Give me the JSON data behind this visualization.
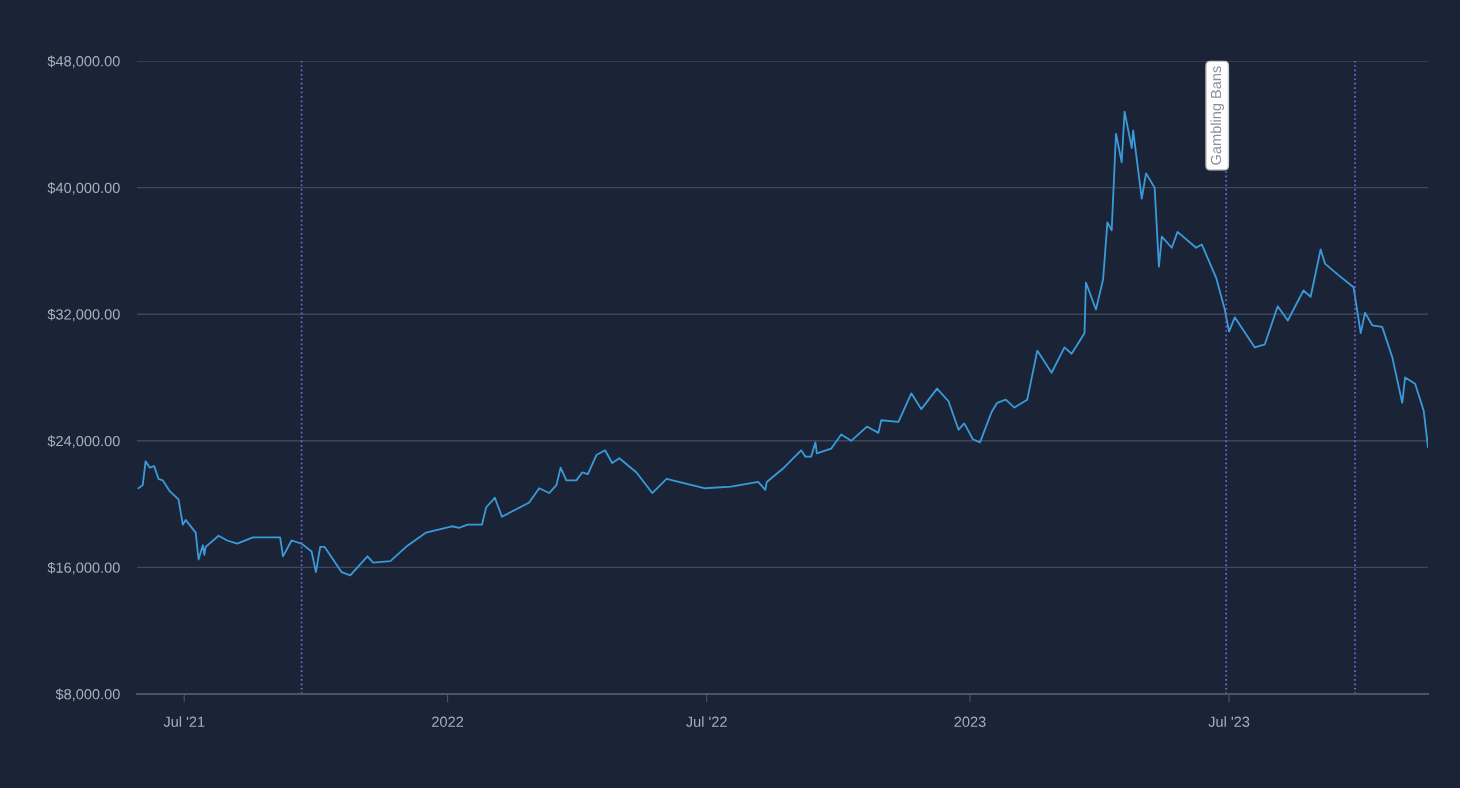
{
  "chart_data": {
    "type": "line",
    "x": [
      "2021-05-30",
      "2021-06-02",
      "2021-06-04",
      "2021-06-07",
      "2021-06-10",
      "2021-06-13",
      "2021-06-16",
      "2021-06-21",
      "2021-06-27",
      "2021-06-30",
      "2021-07-02",
      "2021-07-09",
      "2021-07-11",
      "2021-07-14",
      "2021-07-15",
      "2021-07-16",
      "2021-07-25",
      "2021-07-31",
      "2021-08-07",
      "2021-08-18",
      "2021-09-06",
      "2021-09-08",
      "2021-09-14",
      "2021-09-21",
      "2021-09-28",
      "2021-10-01",
      "2021-10-04",
      "2021-10-07",
      "2021-10-19",
      "2021-10-25",
      "2021-11-06",
      "2021-11-10",
      "2021-11-22",
      "2021-12-03",
      "2021-12-17",
      "2022-01-04",
      "2022-01-09",
      "2022-01-15",
      "2022-01-25",
      "2022-01-28",
      "2022-02-03",
      "2022-02-08",
      "2022-02-27",
      "2022-03-06",
      "2022-03-13",
      "2022-03-18",
      "2022-03-21",
      "2022-03-25",
      "2022-04-01",
      "2022-04-05",
      "2022-04-09",
      "2022-04-15",
      "2022-04-21",
      "2022-04-26",
      "2022-05-01",
      "2022-05-13",
      "2022-05-24",
      "2022-06-03",
      "2022-06-30",
      "2022-07-18",
      "2022-08-06",
      "2022-08-11",
      "2022-08-12",
      "2022-08-24",
      "2022-09-05",
      "2022-09-08",
      "2022-09-12",
      "2022-09-15",
      "2022-09-16",
      "2022-09-26",
      "2022-10-03",
      "2022-10-10",
      "2022-10-21",
      "2022-10-29",
      "2022-10-31",
      "2022-11-12",
      "2022-11-21",
      "2022-11-28",
      "2022-12-09",
      "2022-12-17",
      "2022-12-24",
      "2022-12-28",
      "2023-01-03",
      "2023-01-08",
      "2023-01-16",
      "2023-01-20",
      "2023-01-26",
      "2023-02-01",
      "2023-02-10",
      "2023-02-17",
      "2023-02-27",
      "2023-03-08",
      "2023-03-13",
      "2023-03-22",
      "2023-03-23",
      "2023-03-30",
      "2023-04-04",
      "2023-04-07",
      "2023-04-10",
      "2023-04-13",
      "2023-04-17",
      "2023-04-19",
      "2023-04-24",
      "2023-04-25",
      "2023-05-01",
      "2023-05-04",
      "2023-05-10",
      "2023-05-13",
      "2023-05-15",
      "2023-05-22",
      "2023-05-26",
      "2023-06-08",
      "2023-06-12",
      "2023-06-22",
      "2023-06-28",
      "2023-07-01",
      "2023-07-05",
      "2023-07-19",
      "2023-07-26",
      "2023-08-04",
      "2023-08-11",
      "2023-08-22",
      "2023-08-27",
      "2023-09-03",
      "2023-09-06",
      "2023-09-15",
      "2023-09-26",
      "2023-10-01",
      "2023-10-04",
      "2023-10-09",
      "2023-10-16",
      "2023-10-23",
      "2023-10-30",
      "2023-11-01",
      "2023-11-08",
      "2023-11-14",
      "2023-11-17"
    ],
    "series": [
      {
        "color": "#3a9ad9",
        "values": [
          21000,
          21200,
          22700,
          22300,
          22400,
          21600,
          21500,
          20800,
          20300,
          18700,
          19000,
          18200,
          16500,
          17400,
          16800,
          17300,
          18000,
          17700,
          17500,
          17900,
          17900,
          16700,
          17700,
          17500,
          17000,
          15700,
          17300,
          17300,
          15700,
          15500,
          16700,
          16300,
          16400,
          17300,
          18200,
          18600,
          18500,
          18700,
          18700,
          19800,
          20400,
          19200,
          20100,
          21000,
          20700,
          21200,
          22300,
          21500,
          21500,
          22000,
          21900,
          23100,
          23400,
          22600,
          22900,
          22000,
          20700,
          21600,
          21000,
          21100,
          21400,
          20900,
          21400,
          22300,
          23400,
          23000,
          23000,
          23900,
          23200,
          23500,
          24400,
          24000,
          24900,
          24500,
          25300,
          25200,
          27000,
          26000,
          27300,
          26500,
          24700,
          25100,
          24100,
          23900,
          25800,
          26400,
          26600,
          26100,
          26600,
          29700,
          28300,
          29900,
          29500,
          30800,
          34000,
          32300,
          34200,
          37800,
          37300,
          43400,
          41600,
          44800,
          42500,
          43600,
          39300,
          40900,
          40000,
          35000,
          36900,
          36200,
          37200,
          36200,
          36400,
          34300,
          32300,
          30900,
          31800,
          29900,
          30100,
          32500,
          31600,
          33500,
          33100,
          36100,
          35200,
          34500,
          33700,
          30800,
          32100,
          31300,
          31200,
          29300,
          26400,
          28000,
          27600,
          25900,
          23600
        ]
      }
    ],
    "xlim": [
      "2021-05-29",
      "2023-11-17"
    ],
    "xticks": [
      {
        "value": "2021-07-01",
        "label": "Jul '21"
      },
      {
        "value": "2022-01-01",
        "label": "2022"
      },
      {
        "value": "2022-07-01",
        "label": "Jul '22"
      },
      {
        "value": "2023-01-01",
        "label": "2023"
      },
      {
        "value": "2023-07-01",
        "label": "Jul '23"
      }
    ],
    "ylim": [
      8000,
      48000
    ],
    "yticks": [
      {
        "value": 8000,
        "label": "$8,000.00"
      },
      {
        "value": 16000,
        "label": "$16,000.00"
      },
      {
        "value": 24000,
        "label": "$24,000.00"
      },
      {
        "value": 32000,
        "label": "$32,000.00"
      },
      {
        "value": 40000,
        "label": "$40,000.00"
      },
      {
        "value": 48000,
        "label": "$48,000.00"
      }
    ],
    "ref_lines": [
      {
        "axis": "x",
        "value": "2021-09-21",
        "color": "#7468d8",
        "line_style": "dotted"
      },
      {
        "axis": "x",
        "value": "2023-06-29",
        "label": "Gambling Bans",
        "color": "#7468d8",
        "line_style": "dotted"
      },
      {
        "axis": "x",
        "value": "2023-09-27",
        "color": "#7468d8",
        "line_style": "dotted"
      }
    ],
    "grid": "y",
    "marker": "none",
    "line_style": "solid"
  }
}
